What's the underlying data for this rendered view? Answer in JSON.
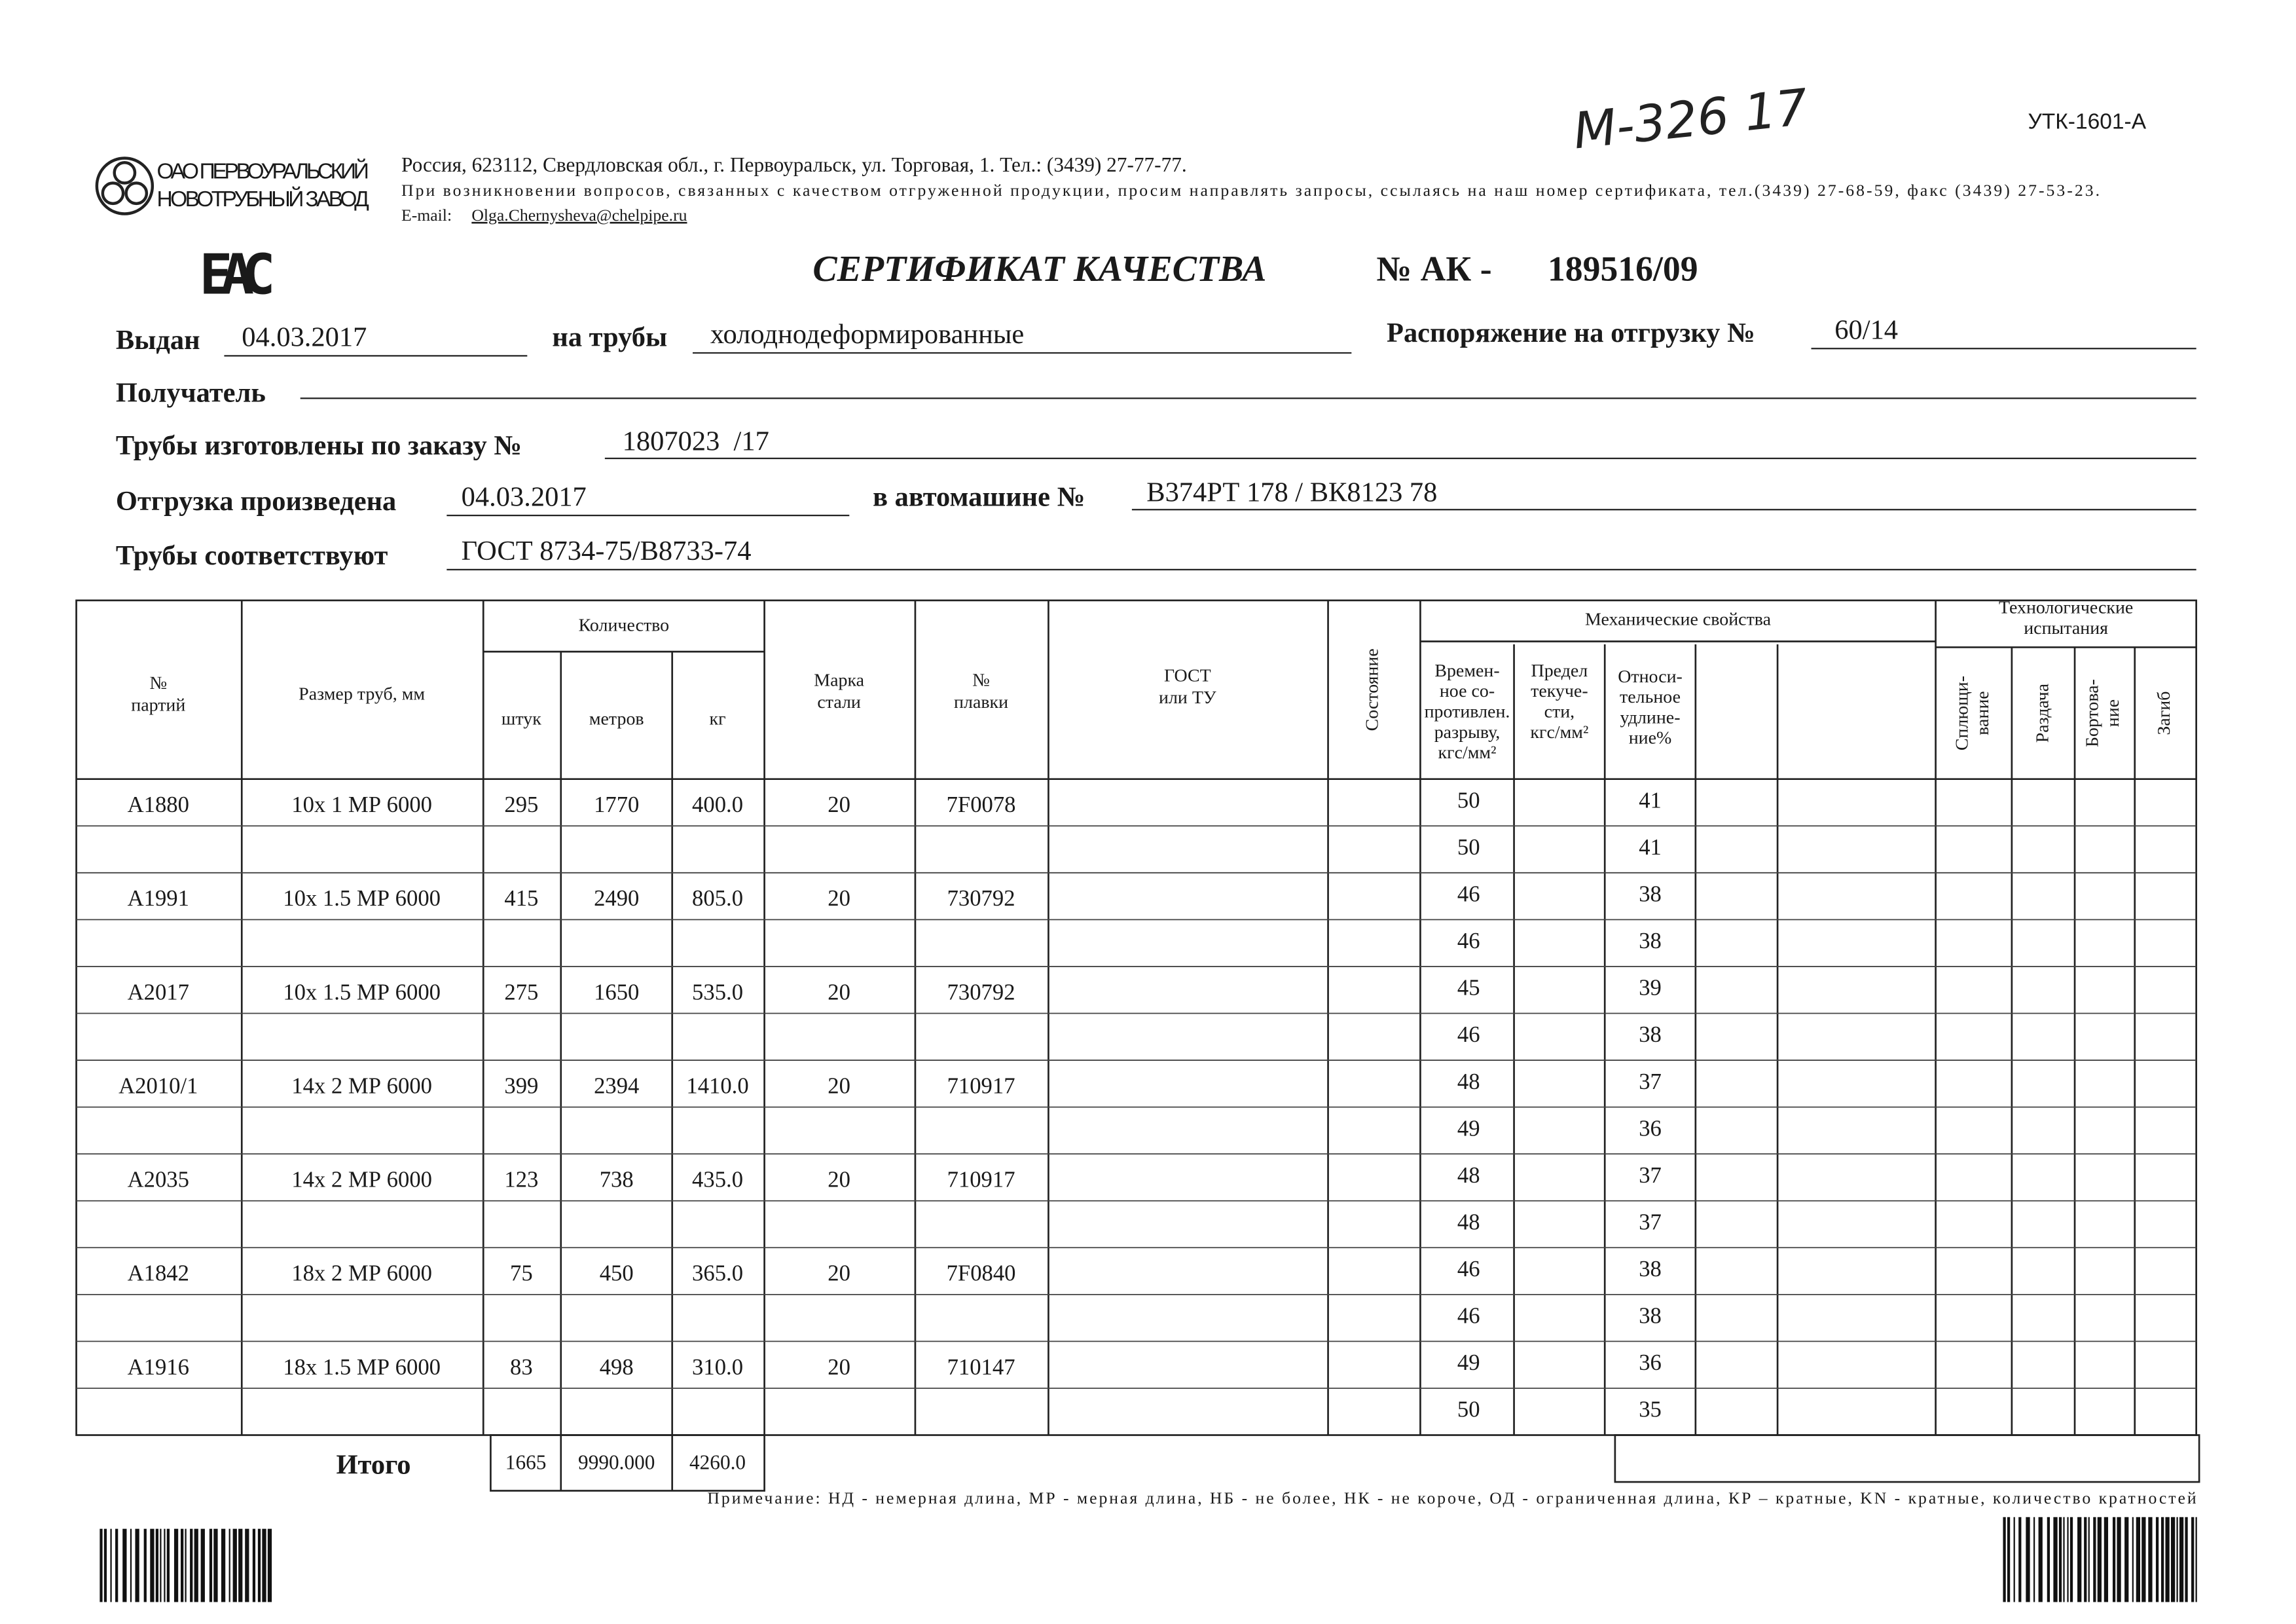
{
  "form_code": "УТК-1601-А",
  "handwritten_note": "М-326 17",
  "company": {
    "name": [
      "ОАО ПЕРВОУРАЛЬСКИЙ",
      "НОВОТРУБНЫЙ ЗАВОД"
    ],
    "address": "Россия, 623112, Свердловская обл., г. Первоуральск, ул. Торговая, 1. Тел.: (3439) 27-77-77.",
    "notice": "При возникновении вопросов, связанных с качеством отгруженной продукции, просим направлять запросы, ссылаясь на наш номер сертификата, тел.(3439) 27-68-59, факс (3439) 27-53-23.",
    "email_label": "E-mail:",
    "email": "Olga.Chernysheva@chelpipe.ru"
  },
  "mark": "ЕАС",
  "title": "СЕРТИФИКАТ КАЧЕСТВА",
  "number_label": "№  АК -",
  "number": "189516/09",
  "fields": {
    "issued": {
      "label": "Выдан",
      "value": "04.03.2017"
    },
    "pipes": {
      "label": "на трубы",
      "value": "холоднодеформированные"
    },
    "order": {
      "label": "Распоряжение на отгрузку №",
      "value": "60/14"
    },
    "recipient": {
      "label": "Получатель"
    },
    "manufactured": {
      "label": "Трубы изготовлены по заказу №",
      "value": "1807023  /17"
    },
    "shipped": {
      "label": "Отгрузка произведена",
      "value": "04.03.2017"
    },
    "vehicle": {
      "label": "в автомашине №",
      "value": "В374РТ 178 / ВК8123 78"
    },
    "standard": {
      "label": "Трубы соответствуют",
      "value": "ГОСТ 8734-75/В8733-74"
    }
  },
  "table": {
    "header": {
      "party": [
        "№",
        "партий"
      ],
      "size": [
        "Размер труб, мм"
      ],
      "quantity": "Количество",
      "pieces": "штук",
      "meters": "метров",
      "kg": "кг",
      "steel": [
        "Марка",
        "стали"
      ],
      "heat": [
        "№",
        "плавки"
      ],
      "standard": [
        "ГОСТ",
        "или ТУ"
      ],
      "condition": "Состояние",
      "mechanical": "Механические свойства",
      "tensile": [
        "Времен-",
        "ное со-",
        "противлен.",
        "разрыву,",
        "кгс/мм²"
      ],
      "yield": [
        "Предел",
        "текуче-",
        "сти,",
        "кгс/мм²"
      ],
      "elongation": [
        "Относи-",
        "тельное",
        "удлине-",
        "ние%"
      ],
      "technological": [
        "Технологические",
        "испытания"
      ],
      "flattening": [
        "Сплющи-",
        "вание"
      ],
      "expansion": [
        "Раздача"
      ],
      "flanging": [
        "Бортова-",
        "ние"
      ],
      "bending": [
        "Загиб"
      ]
    },
    "batches": [
      {
        "party": "А1880",
        "size": "10х 1 МР 6000",
        "pieces": "295",
        "meters": "1770",
        "kg": "400.0",
        "steel": "20",
        "heat": "7F0078",
        "tests": [
          [
            "50",
            "41"
          ],
          [
            "50",
            "41"
          ]
        ]
      },
      {
        "party": "А1991",
        "size": "10х 1.5 МР 6000",
        "pieces": "415",
        "meters": "2490",
        "kg": "805.0",
        "steel": "20",
        "heat": "730792",
        "tests": [
          [
            "46",
            "38"
          ],
          [
            "46",
            "38"
          ]
        ]
      },
      {
        "party": "А2017",
        "size": "10х 1.5 МР 6000",
        "pieces": "275",
        "meters": "1650",
        "kg": "535.0",
        "steel": "20",
        "heat": "730792",
        "tests": [
          [
            "45",
            "39"
          ],
          [
            "46",
            "38"
          ]
        ]
      },
      {
        "party": "А2010/1",
        "size": "14х 2 МР 6000",
        "pieces": "399",
        "meters": "2394",
        "kg": "1410.0",
        "steel": "20",
        "heat": "710917",
        "tests": [
          [
            "48",
            "37"
          ],
          [
            "49",
            "36"
          ]
        ]
      },
      {
        "party": "А2035",
        "size": "14х 2 МР 6000",
        "pieces": "123",
        "meters": "738",
        "kg": "435.0",
        "steel": "20",
        "heat": "710917",
        "tests": [
          [
            "48",
            "37"
          ],
          [
            "48",
            "37"
          ]
        ]
      },
      {
        "party": "А1842",
        "size": "18х 2 МР 6000",
        "pieces": "75",
        "meters": "450",
        "kg": "365.0",
        "steel": "20",
        "heat": "7F0840",
        "tests": [
          [
            "46",
            "38"
          ],
          [
            "46",
            "38"
          ]
        ]
      },
      {
        "party": "А1916",
        "size": "18х 1.5 МР 6000",
        "pieces": "83",
        "meters": "498",
        "kg": "310.0",
        "steel": "20",
        "heat": "710147",
        "tests": [
          [
            "49",
            "36"
          ],
          [
            "50",
            "35"
          ]
        ]
      }
    ]
  },
  "total": {
    "label": "Итого",
    "pieces": "1665",
    "meters": "9990.000",
    "kg": "4260.0"
  },
  "footnote": "Примечание: НД - немерная длина, МР - мерная длина, НБ - не более, НК - не короче, ОД - ограниченная длина, КР – кратные, KN - кратные, количество кратностей"
}
